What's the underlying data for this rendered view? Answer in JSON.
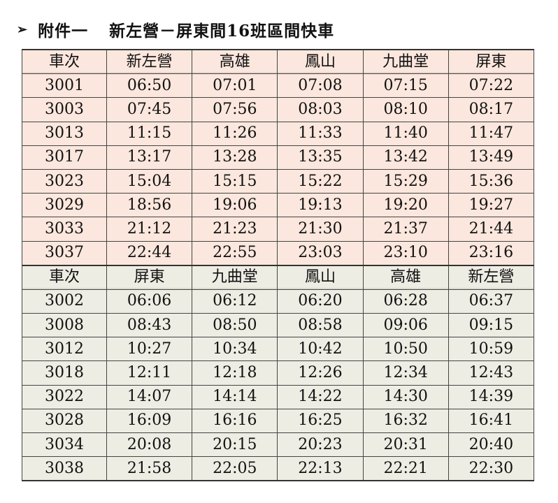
{
  "page": {
    "arrow_glyph": "➢",
    "annex_label": "附件一",
    "title": "新左營－屏東間16班區間快車"
  },
  "southbound": {
    "headers": [
      "車次",
      "新左營",
      "高雄",
      "鳳山",
      "九曲堂",
      "屏東"
    ],
    "rows": [
      [
        "3001",
        "06:50",
        "07:01",
        "07:08",
        "07:15",
        "07:22"
      ],
      [
        "3003",
        "07:45",
        "07:56",
        "08:03",
        "08:10",
        "08:17"
      ],
      [
        "3013",
        "11:15",
        "11:26",
        "11:33",
        "11:40",
        "11:47"
      ],
      [
        "3017",
        "13:17",
        "13:28",
        "13:35",
        "13:42",
        "13:49"
      ],
      [
        "3023",
        "15:04",
        "15:15",
        "15:22",
        "15:29",
        "15:36"
      ],
      [
        "3029",
        "18:56",
        "19:06",
        "19:13",
        "19:20",
        "19:27"
      ],
      [
        "3033",
        "21:12",
        "21:23",
        "21:30",
        "21:37",
        "21:44"
      ],
      [
        "3037",
        "22:44",
        "22:55",
        "23:03",
        "23:10",
        "23:16"
      ]
    ]
  },
  "northbound": {
    "headers": [
      "車次",
      "屏東",
      "九曲堂",
      "鳳山",
      "高雄",
      "新左營"
    ],
    "rows": [
      [
        "3002",
        "06:06",
        "06:12",
        "06:20",
        "06:28",
        "06:37"
      ],
      [
        "3008",
        "08:43",
        "08:50",
        "08:58",
        "09:06",
        "09:15"
      ],
      [
        "3012",
        "10:27",
        "10:34",
        "10:42",
        "10:50",
        "10:59"
      ],
      [
        "3018",
        "12:11",
        "12:18",
        "12:26",
        "12:34",
        "12:43"
      ],
      [
        "3022",
        "14:07",
        "14:14",
        "14:22",
        "14:30",
        "14:39"
      ],
      [
        "3028",
        "16:09",
        "16:16",
        "16:25",
        "16:32",
        "16:41"
      ],
      [
        "3034",
        "20:08",
        "20:15",
        "20:23",
        "20:31",
        "20:40"
      ],
      [
        "3038",
        "21:58",
        "22:05",
        "22:13",
        "22:21",
        "22:30"
      ]
    ]
  },
  "colors": {
    "southbound_bg": "#fbe7dd",
    "northbound_bg": "#eeede4"
  }
}
